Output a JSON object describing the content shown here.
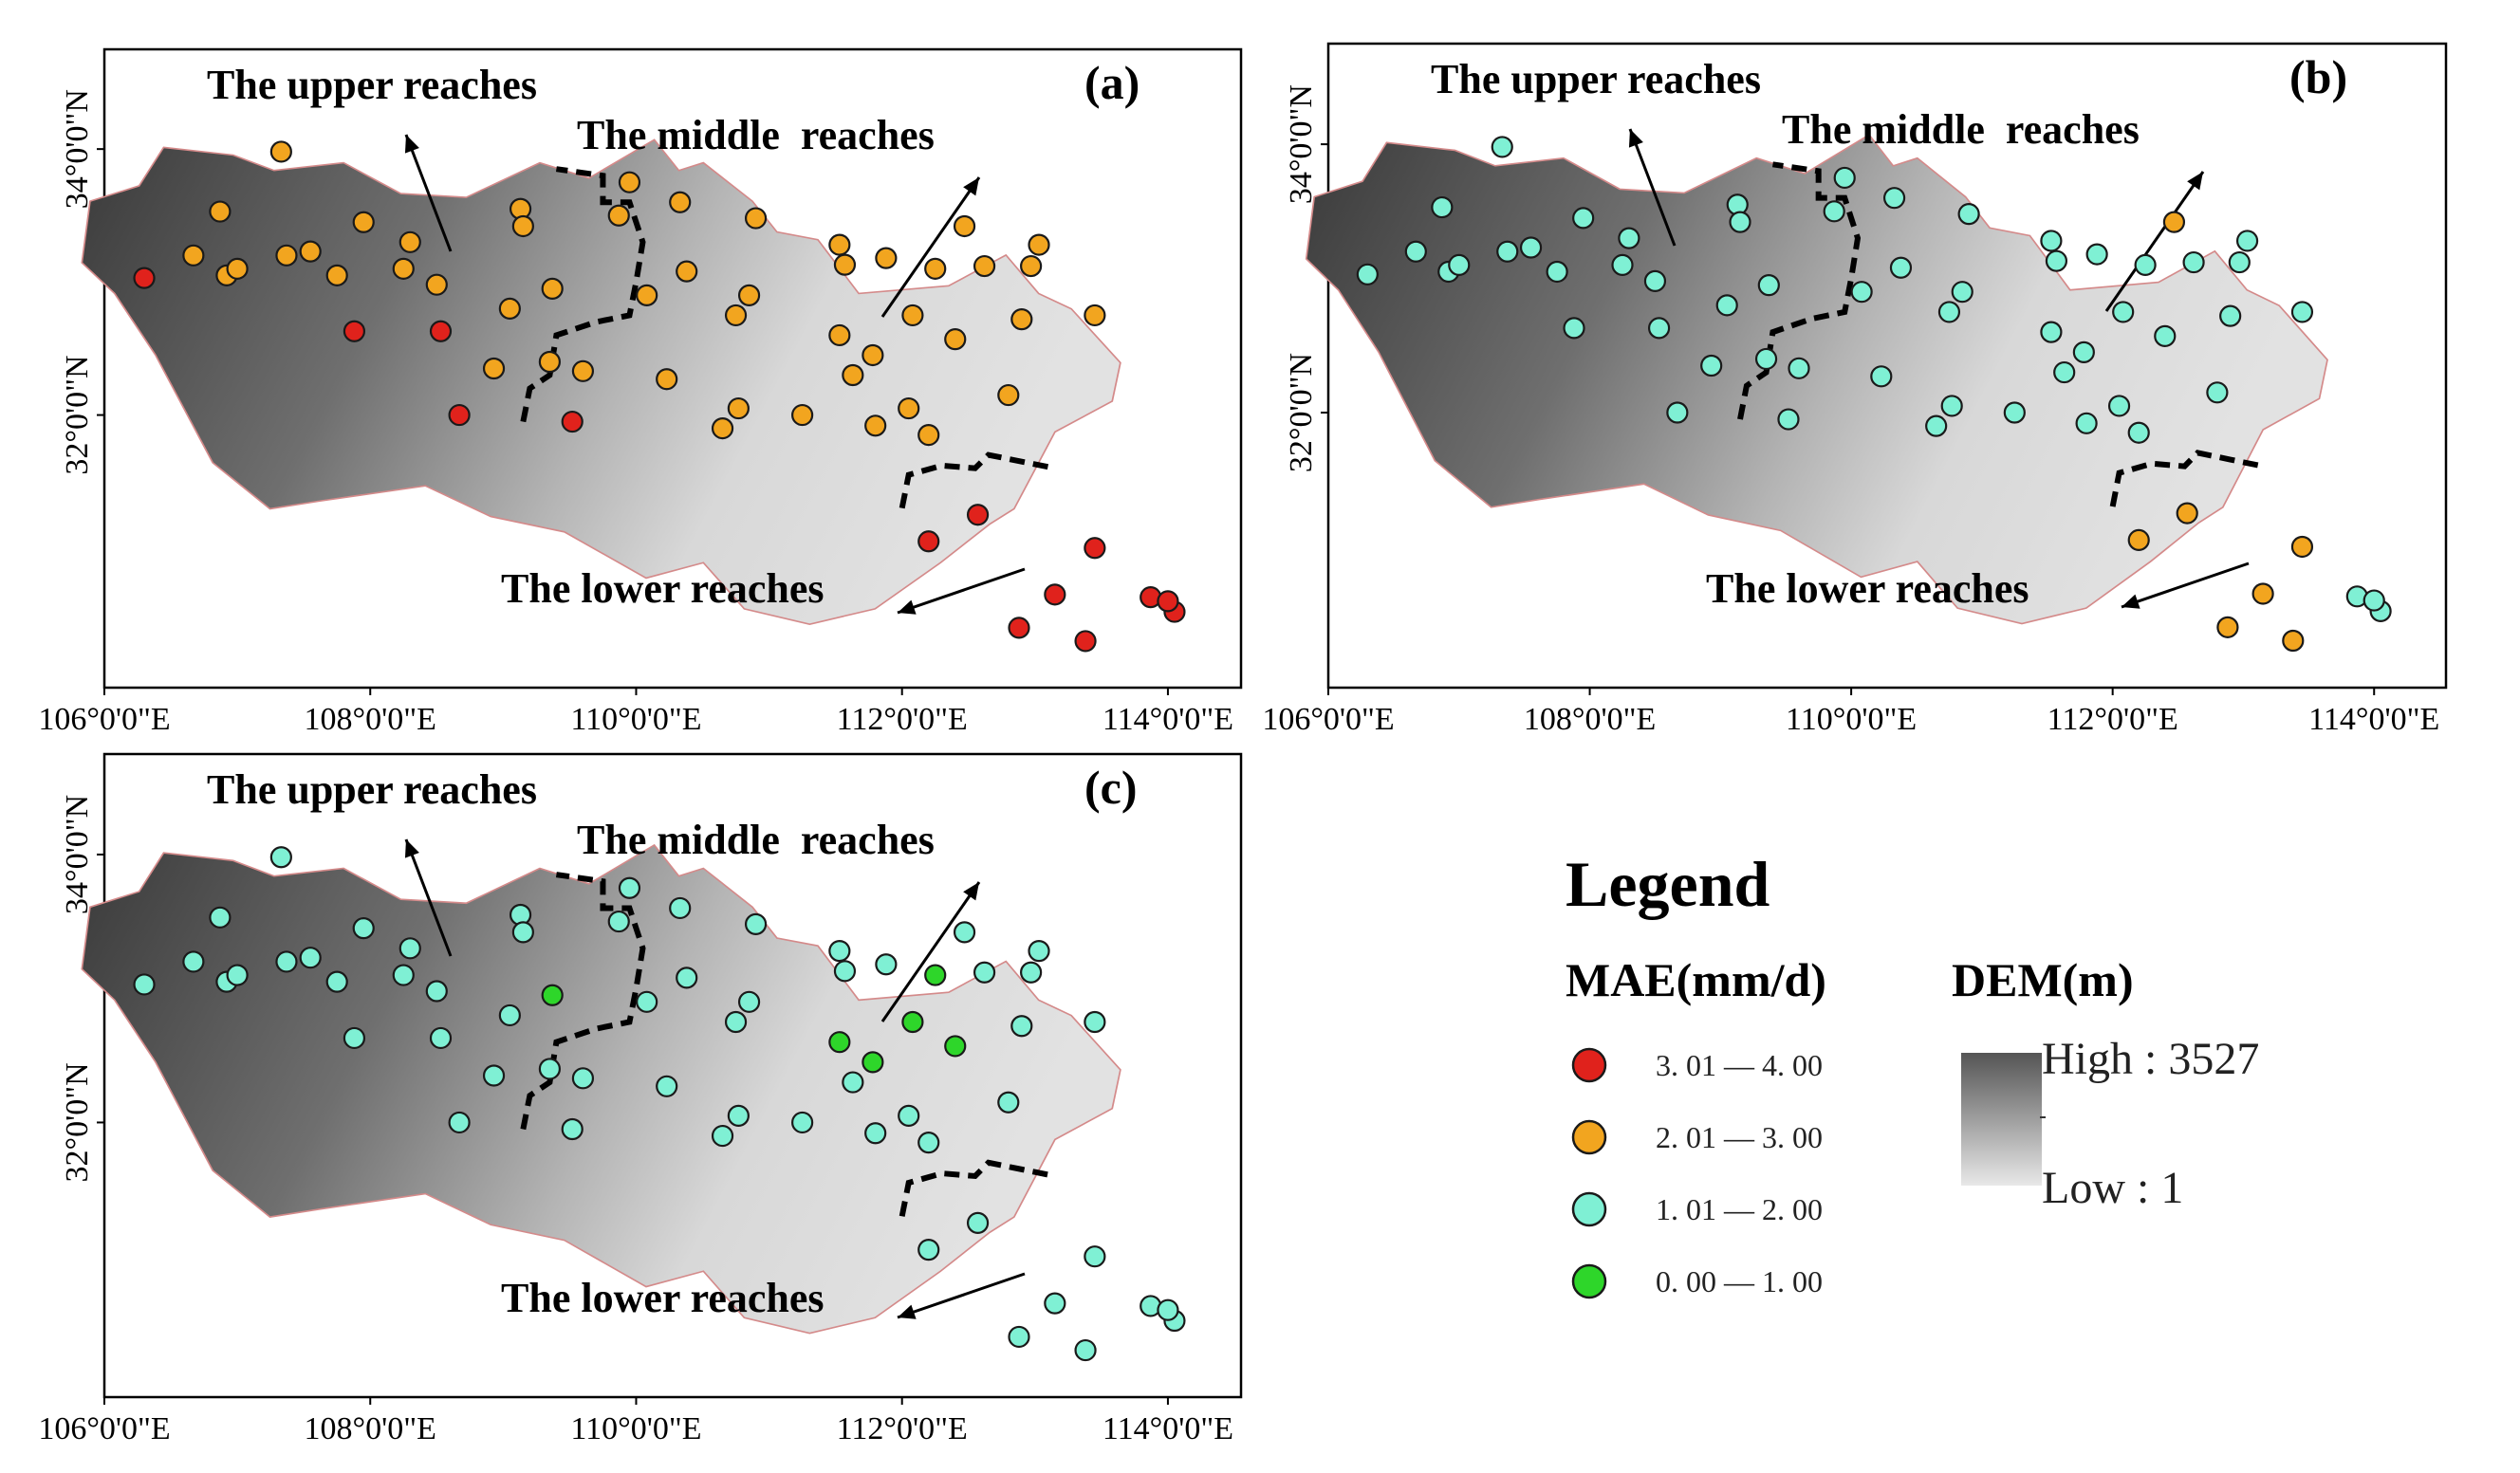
{
  "figure": {
    "panels": [
      {
        "id": "a",
        "letter": "(a)",
        "upper_label": "The upper reaches",
        "middle_label": "The middle  reaches",
        "lower_label": "The lower reaches"
      },
      {
        "id": "b",
        "letter": "(b)",
        "upper_label": "The upper reaches",
        "middle_label": "The middle  reaches",
        "lower_label": "The lower reaches"
      },
      {
        "id": "c",
        "letter": "(c)",
        "upper_label": "The upper reaches",
        "middle_label": "The middle  reaches",
        "lower_label": "The lower reaches"
      }
    ],
    "x_ticks": [
      "106°0'0\"E",
      "108°0'0\"E",
      "110°0'0\"E",
      "112°0'0\"E",
      "114°0'0\"E"
    ],
    "y_ticks": [
      "34°0'0\"N",
      "32°0'0\"N"
    ]
  },
  "legend": {
    "title": "Legend",
    "mae_title": "MAE(mm/d)",
    "dem_title": "DEM(m)",
    "classes": [
      {
        "label": "3. 01 — 4. 00",
        "color": "#e0221c",
        "key": "red"
      },
      {
        "label": "2. 01 — 3. 00",
        "color": "#f2a51f",
        "key": "orange"
      },
      {
        "label": "1. 01 — 2. 00",
        "color": "#7ff0d4",
        "key": "cyan"
      },
      {
        "label": "0. 00 — 1. 00",
        "color": "#2ed62a",
        "key": "green"
      }
    ],
    "dem_high": "High : 3527",
    "dem_low": "Low : 1"
  },
  "stations": [
    {
      "lon": 106.3,
      "lat": 33.03
    },
    {
      "lon": 106.87,
      "lat": 33.53
    },
    {
      "lon": 107.33,
      "lat": 33.98
    },
    {
      "lon": 106.67,
      "lat": 33.2
    },
    {
      "lon": 106.92,
      "lat": 33.05
    },
    {
      "lon": 107.0,
      "lat": 33.1
    },
    {
      "lon": 107.37,
      "lat": 33.2
    },
    {
      "lon": 107.55,
      "lat": 33.23
    },
    {
      "lon": 107.75,
      "lat": 33.05
    },
    {
      "lon": 107.95,
      "lat": 33.45
    },
    {
      "lon": 108.3,
      "lat": 33.3
    },
    {
      "lon": 108.25,
      "lat": 33.1
    },
    {
      "lon": 108.5,
      "lat": 32.98
    },
    {
      "lon": 107.88,
      "lat": 32.63
    },
    {
      "lon": 108.53,
      "lat": 32.63
    },
    {
      "lon": 108.67,
      "lat": 32.0
    },
    {
      "lon": 108.93,
      "lat": 32.35
    },
    {
      "lon": 109.05,
      "lat": 32.8
    },
    {
      "lon": 109.13,
      "lat": 33.55
    },
    {
      "lon": 109.15,
      "lat": 33.42
    },
    {
      "lon": 109.37,
      "lat": 32.95
    },
    {
      "lon": 109.35,
      "lat": 32.4
    },
    {
      "lon": 109.52,
      "lat": 31.95
    },
    {
      "lon": 109.6,
      "lat": 32.33
    },
    {
      "lon": 109.87,
      "lat": 33.5
    },
    {
      "lon": 109.95,
      "lat": 33.75
    },
    {
      "lon": 110.08,
      "lat": 32.9
    },
    {
      "lon": 110.33,
      "lat": 33.6
    },
    {
      "lon": 110.38,
      "lat": 33.08
    },
    {
      "lon": 110.23,
      "lat": 32.27
    },
    {
      "lon": 110.75,
      "lat": 32.75
    },
    {
      "lon": 110.77,
      "lat": 32.05
    },
    {
      "lon": 110.9,
      "lat": 33.48
    },
    {
      "lon": 110.85,
      "lat": 32.9
    },
    {
      "lon": 110.65,
      "lat": 31.9
    },
    {
      "lon": 111.25,
      "lat": 32.0
    },
    {
      "lon": 111.53,
      "lat": 33.28
    },
    {
      "lon": 111.57,
      "lat": 33.13
    },
    {
      "lon": 111.53,
      "lat": 32.6
    },
    {
      "lon": 111.63,
      "lat": 32.3
    },
    {
      "lon": 111.88,
      "lat": 33.18
    },
    {
      "lon": 111.78,
      "lat": 32.45
    },
    {
      "lon": 111.8,
      "lat": 31.92
    },
    {
      "lon": 112.08,
      "lat": 32.75
    },
    {
      "lon": 112.05,
      "lat": 32.05
    },
    {
      "lon": 112.2,
      "lat": 31.85
    },
    {
      "lon": 112.25,
      "lat": 33.1
    },
    {
      "lon": 112.4,
      "lat": 32.57
    },
    {
      "lon": 112.47,
      "lat": 33.42
    },
    {
      "lon": 112.62,
      "lat": 33.12
    },
    {
      "lon": 112.8,
      "lat": 32.15
    },
    {
      "lon": 112.9,
      "lat": 32.72
    },
    {
      "lon": 112.97,
      "lat": 33.12
    },
    {
      "lon": 113.03,
      "lat": 33.28
    },
    {
      "lon": 113.45,
      "lat": 32.75
    },
    {
      "lon": 112.2,
      "lat": 31.05
    },
    {
      "lon": 112.57,
      "lat": 31.25
    },
    {
      "lon": 113.45,
      "lat": 31.0
    },
    {
      "lon": 113.15,
      "lat": 30.65
    },
    {
      "lon": 112.88,
      "lat": 30.4
    },
    {
      "lon": 113.38,
      "lat": 30.3
    },
    {
      "lon": 113.87,
      "lat": 30.63
    },
    {
      "lon": 114.05,
      "lat": 30.52
    },
    {
      "lon": 114.0,
      "lat": 30.6
    }
  ],
  "station_classes": {
    "a": [
      "red",
      "orange",
      "orange",
      "orange",
      "orange",
      "orange",
      "orange",
      "orange",
      "orange",
      "orange",
      "orange",
      "orange",
      "orange",
      "red",
      "red",
      "red",
      "orange",
      "orange",
      "orange",
      "orange",
      "orange",
      "orange",
      "red",
      "orange",
      "orange",
      "orange",
      "orange",
      "orange",
      "orange",
      "orange",
      "orange",
      "orange",
      "orange",
      "orange",
      "orange",
      "orange",
      "orange",
      "orange",
      "orange",
      "orange",
      "orange",
      "orange",
      "orange",
      "orange",
      "orange",
      "orange",
      "orange",
      "orange",
      "orange",
      "orange",
      "orange",
      "orange",
      "orange",
      "orange",
      "orange",
      "red",
      "red",
      "red",
      "red",
      "red",
      "red",
      "red",
      "red",
      "red"
    ],
    "b": [
      "cyan",
      "cyan",
      "cyan",
      "cyan",
      "cyan",
      "cyan",
      "cyan",
      "cyan",
      "cyan",
      "cyan",
      "cyan",
      "cyan",
      "cyan",
      "cyan",
      "cyan",
      "cyan",
      "cyan",
      "cyan",
      "cyan",
      "cyan",
      "cyan",
      "cyan",
      "cyan",
      "cyan",
      "cyan",
      "cyan",
      "cyan",
      "cyan",
      "cyan",
      "cyan",
      "cyan",
      "cyan",
      "cyan",
      "cyan",
      "cyan",
      "cyan",
      "cyan",
      "cyan",
      "cyan",
      "cyan",
      "cyan",
      "cyan",
      "cyan",
      "cyan",
      "cyan",
      "cyan",
      "cyan",
      "cyan",
      "orange",
      "cyan",
      "cyan",
      "cyan",
      "cyan",
      "cyan",
      "cyan",
      "orange",
      "orange",
      "orange",
      "orange",
      "orange",
      "orange",
      "cyan",
      "cyan",
      "cyan"
    ],
    "c": [
      "cyan",
      "cyan",
      "cyan",
      "cyan",
      "cyan",
      "cyan",
      "cyan",
      "cyan",
      "cyan",
      "cyan",
      "cyan",
      "cyan",
      "cyan",
      "cyan",
      "cyan",
      "cyan",
      "cyan",
      "cyan",
      "cyan",
      "cyan",
      "green",
      "cyan",
      "cyan",
      "cyan",
      "cyan",
      "cyan",
      "cyan",
      "cyan",
      "cyan",
      "cyan",
      "cyan",
      "cyan",
      "cyan",
      "cyan",
      "cyan",
      "cyan",
      "cyan",
      "cyan",
      "green",
      "cyan",
      "cyan",
      "green",
      "cyan",
      "green",
      "cyan",
      "cyan",
      "green",
      "green",
      "cyan",
      "cyan",
      "cyan",
      "cyan",
      "cyan",
      "cyan",
      "cyan",
      "cyan",
      "cyan",
      "cyan",
      "cyan",
      "cyan",
      "cyan",
      "cyan",
      "cyan",
      "cyan"
    ]
  }
}
